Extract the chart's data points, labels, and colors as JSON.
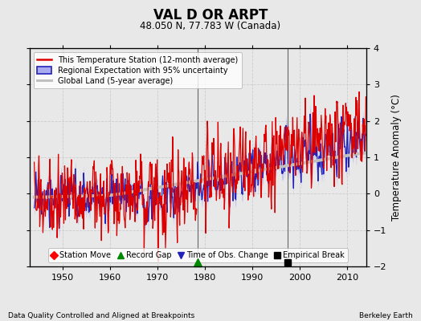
{
  "title": "VAL D OR ARPT",
  "subtitle": "48.050 N, 77.783 W (Canada)",
  "ylabel": "Temperature Anomaly (°C)",
  "xlabel_left": "Data Quality Controlled and Aligned at Breakpoints",
  "xlabel_right": "Berkeley Earth",
  "year_start": 1943,
  "year_end": 2014,
  "ylim": [
    -2.0,
    4.0
  ],
  "yticks": [
    -2,
    -1,
    0,
    1,
    2,
    3,
    4
  ],
  "xticks": [
    1950,
    1960,
    1970,
    1980,
    1990,
    2000,
    2010
  ],
  "bg_color": "#e8e8e8",
  "plot_bg_color": "#e8e8e8",
  "grid_color": "#cccccc",
  "station_color": "#dd0000",
  "regional_color": "#2222bb",
  "regional_fill_color": "#aaaaee",
  "global_color": "#c0c0c0",
  "vertical_line_x": [
    1978.5,
    1997.5
  ],
  "record_gap_x": 1978.5,
  "empirical_break_x": 1997.5,
  "legend_labels": [
    "This Temperature Station (12-month average)",
    "Regional Expectation with 95% uncertainty",
    "Global Land (5-year average)"
  ],
  "marker_legend": [
    "Station Move",
    "Record Gap",
    "Time of Obs. Change",
    "Empirical Break"
  ],
  "figsize": [
    5.24,
    4.0
  ],
  "dpi": 100
}
